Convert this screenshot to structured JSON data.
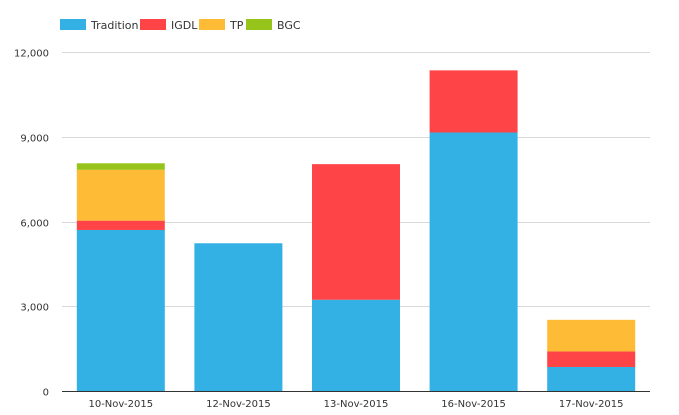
{
  "chart_data": {
    "type": "bar",
    "stacked": true,
    "categories": [
      "10-Nov-2015",
      "12-Nov-2015",
      "13-Nov-2015",
      "16-Nov-2015",
      "17-Nov-2015"
    ],
    "series": [
      {
        "name": "Tradition",
        "color": "#34b1e4",
        "values": [
          5700,
          5230,
          3230,
          9150,
          850
        ]
      },
      {
        "name": "IGDL",
        "color": "#fe4446",
        "values": [
          330,
          0,
          4800,
          2200,
          550
        ]
      },
      {
        "name": "TP",
        "color": "#fdbb36",
        "values": [
          1800,
          0,
          0,
          0,
          1120
        ]
      },
      {
        "name": "BGC",
        "color": "#97c41b",
        "values": [
          230,
          0,
          0,
          0,
          0
        ]
      }
    ],
    "ylim": [
      0,
      12000
    ],
    "yticks": [
      "0",
      "3,000",
      "6,000",
      "9,000",
      "12,000"
    ],
    "grid": true,
    "legend_position": "top-left"
  }
}
